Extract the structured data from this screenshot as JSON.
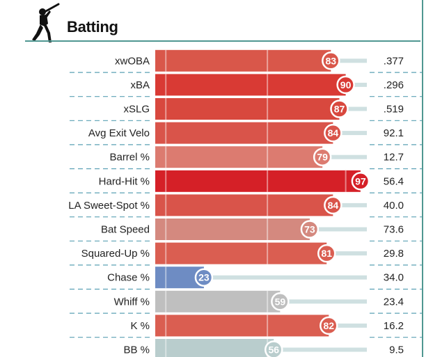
{
  "section": {
    "title": "Batting",
    "icon": "batter-icon"
  },
  "colors": {
    "teal": "#4f9791",
    "track": "#cfe0e1",
    "dash": "#5aa0b4"
  },
  "chart_data": {
    "type": "bar",
    "orientation": "horizontal",
    "scale": [
      0,
      100
    ],
    "grid": true,
    "metrics": [
      {
        "name": "xwOBA",
        "percentile": 83,
        "value": ".377",
        "color": "#d9574a"
      },
      {
        "name": "xBA",
        "percentile": 90,
        "value": ".296",
        "color": "#d93a34"
      },
      {
        "name": "xSLG",
        "percentile": 87,
        "value": ".519",
        "color": "#d8483e"
      },
      {
        "name": "Avg Exit Velo",
        "percentile": 84,
        "value": "92.1",
        "color": "#d9544a"
      },
      {
        "name": "Barrel %",
        "percentile": 79,
        "value": "12.7",
        "color": "#dc7b70"
      },
      {
        "name": "Hard-Hit %",
        "percentile": 97,
        "value": "56.4",
        "color": "#d52027"
      },
      {
        "name": "LA Sweet-Spot %",
        "percentile": 84,
        "value": "40.0",
        "color": "#d9544a"
      },
      {
        "name": "Bat Speed",
        "percentile": 73,
        "value": "73.6",
        "color": "#d4897f"
      },
      {
        "name": "Squared-Up %",
        "percentile": 81,
        "value": "29.8",
        "color": "#da5e51"
      },
      {
        "name": "Chase %",
        "percentile": 23,
        "value": "34.0",
        "color": "#6e8cc3"
      },
      {
        "name": "Whiff %",
        "percentile": 59,
        "value": "23.4",
        "color": "#bfbfbf"
      },
      {
        "name": "K %",
        "percentile": 82,
        "value": "16.2",
        "color": "#da5e51"
      },
      {
        "name": "BB %",
        "percentile": 56,
        "value": "9.5",
        "color": "#b9cdcd"
      }
    ]
  }
}
